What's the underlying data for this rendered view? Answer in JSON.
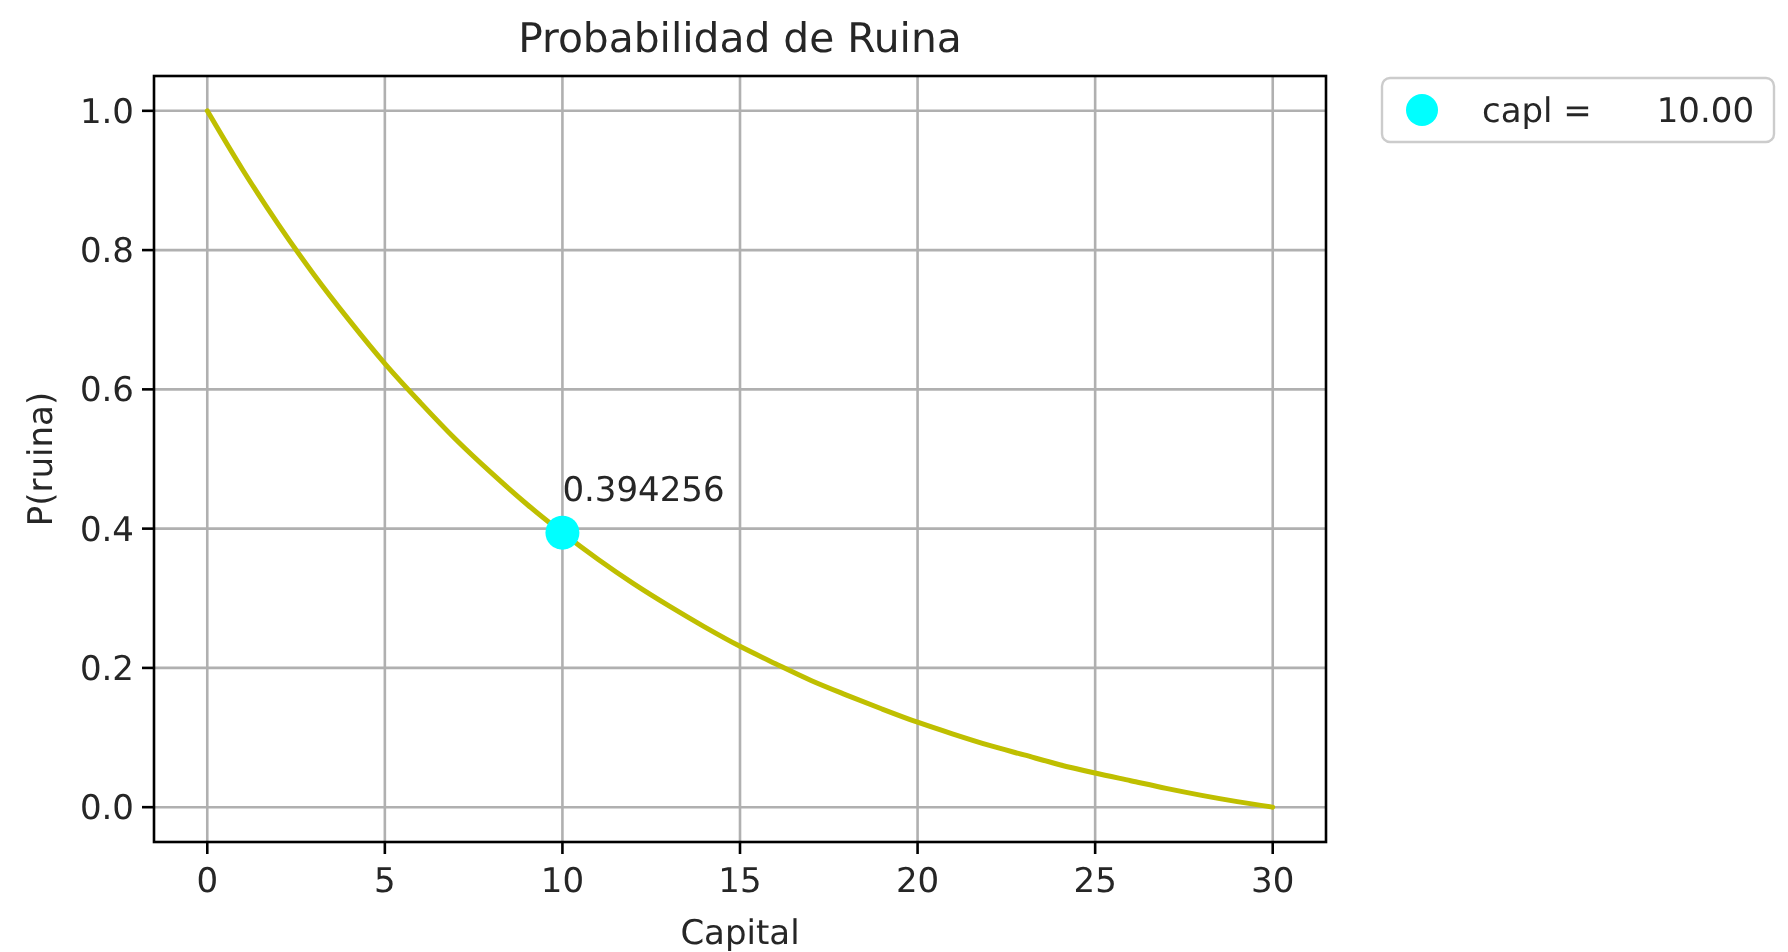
{
  "chart_data": {
    "type": "line",
    "title": "Probabilidad de Ruina",
    "xlabel": "Capital",
    "ylabel": "P(ruina)",
    "xlim": [
      -1.5,
      31.5
    ],
    "xticks": [
      0,
      5,
      10,
      15,
      20,
      25,
      30
    ],
    "ylim": [
      -0.05,
      1.05
    ],
    "yticks": [
      {
        "value": 0,
        "label": "0.0"
      },
      0.2,
      0.4,
      0.6,
      0.8,
      {
        "value": 1,
        "label": "1.0"
      }
    ],
    "grid": true,
    "legend": "top right",
    "series": [
      {
        "color": "#bfbf00",
        "x": [
          0,
          1,
          2,
          3,
          4,
          5,
          6,
          7,
          8,
          9,
          10,
          11,
          12,
          13,
          14,
          15,
          16,
          17,
          18,
          19,
          20,
          21,
          22,
          23,
          24,
          25,
          26,
          27,
          28,
          29,
          30
        ],
        "values": [
          1.0,
          0.915,
          0.837,
          0.765,
          0.699,
          0.637,
          0.581,
          0.528,
          0.48,
          0.435,
          0.394,
          0.356,
          0.321,
          0.289,
          0.259,
          0.231,
          0.206,
          0.182,
          0.161,
          0.141,
          0.122,
          0.105,
          0.089,
          0.075,
          0.061,
          0.049,
          0.038,
          0.027,
          0.017,
          0.008,
          0.0
        ]
      },
      {
        "type": "scatter",
        "name": "capl =      10.00",
        "color": "#00ffff",
        "marker": "circle",
        "x": [
          10
        ],
        "values": [
          0.394256
        ],
        "value_labels": [
          "0.394256"
        ]
      }
    ]
  }
}
